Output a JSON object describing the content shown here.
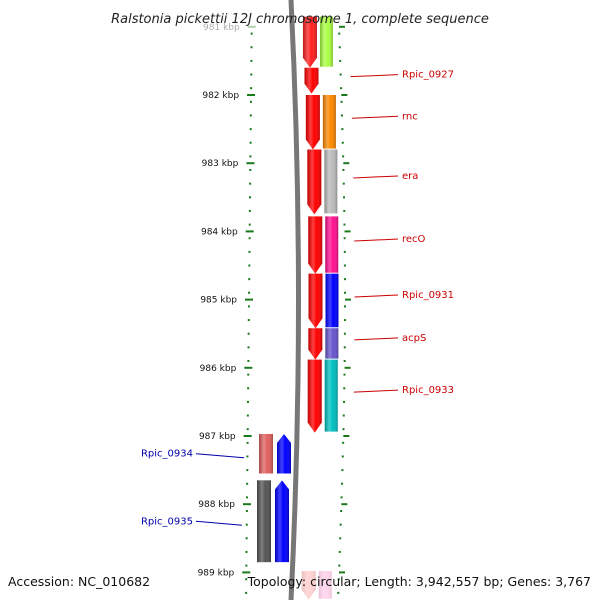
{
  "title": "Ralstonia pickettii 12J chromosome 1, complete sequence",
  "footer": {
    "accession": "Accession: NC_010682",
    "topology": "Topology: circular; Length: 3,942,557 bp; Genes: 3,767"
  },
  "colors": {
    "ruler": "#1a7a1a",
    "forward_label": "#cc0000",
    "reverse_label": "#0000aa",
    "backbone": "#777777"
  },
  "ruler": {
    "unit": "kbp",
    "ticks": [
      {
        "kbp": 981,
        "label": "981 kbp",
        "faded": true
      },
      {
        "kbp": 982,
        "label": "982 kbp"
      },
      {
        "kbp": 983,
        "label": "983 kbp"
      },
      {
        "kbp": 984,
        "label": "984 kbp"
      },
      {
        "kbp": 985,
        "label": "985 kbp"
      },
      {
        "kbp": 986,
        "label": "986 kbp"
      },
      {
        "kbp": 987,
        "label": "987 kbp"
      },
      {
        "kbp": 988,
        "label": "988 kbp"
      },
      {
        "kbp": 989,
        "label": "989 kbp"
      }
    ]
  },
  "genes_forward": [
    {
      "name": "",
      "start": 980.85,
      "end": 981.6,
      "outer": "#ff2020",
      "inner": "#aaff44"
    },
    {
      "name": "Rpic_0927",
      "start": 981.6,
      "end": 981.98,
      "outer": "#ff0000",
      "inner": null
    },
    {
      "name": "rnc",
      "start": 982.0,
      "end": 982.8,
      "outer": "#ff0000",
      "inner": "#ff8800"
    },
    {
      "name": "era",
      "start": 982.8,
      "end": 983.75,
      "outer": "#ff0000",
      "inner": "#bbbbbb"
    },
    {
      "name": "recO",
      "start": 983.78,
      "end": 984.62,
      "outer": "#ff0000",
      "inner": "#ff1090"
    },
    {
      "name": "Rpic_0931",
      "start": 984.62,
      "end": 985.42,
      "outer": "#ff0000",
      "inner": "#0000ff"
    },
    {
      "name": "acpS",
      "start": 985.42,
      "end": 985.88,
      "outer": "#ff0000",
      "inner": "#6655cc"
    },
    {
      "name": "Rpic_0933",
      "start": 985.88,
      "end": 986.95,
      "outer": "#ff0000",
      "inner": "#00c0c0"
    },
    {
      "name": "",
      "start": 988.98,
      "end": 989.4,
      "outer": "#ff8080",
      "inner": "#ff88cc",
      "faded": true
    }
  ],
  "genes_reverse": [
    {
      "name": "Rpic_0934",
      "start": 986.97,
      "end": 987.55,
      "outer": "#e06060",
      "inner": "#0000ff"
    },
    {
      "name": "Rpic_0935",
      "start": 987.65,
      "end": 988.85,
      "outer": "#555555",
      "inner": "#0000ff"
    }
  ]
}
